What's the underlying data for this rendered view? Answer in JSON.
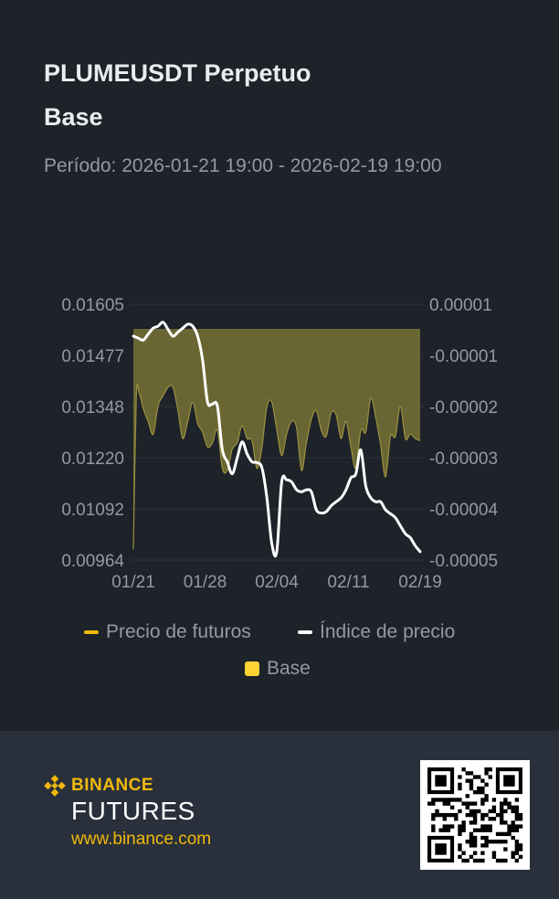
{
  "header": {
    "title_line1": "PLUMEUSDT Perpetuo",
    "title_line2": "Base",
    "period": "Período: 2026-01-21 19:00 - 2026-02-19 19:00"
  },
  "legend": {
    "futures_label": "Precio de futuros",
    "index_label": "Índice de precio",
    "basis_label": "Base"
  },
  "footer": {
    "brand_name": "BINANCE",
    "brand_sub": "FUTURES",
    "website": "www.binance.com"
  },
  "colors": {
    "futures": "#f0b90b",
    "index": "#ffffff",
    "basis": "#fcd535",
    "basis_fill": "#6f6a34",
    "grid": "#2e333c",
    "tick": "#929aa5"
  },
  "chart_data": {
    "type": "area",
    "x_ticks": [
      "01/21",
      "01/28",
      "02/04",
      "02/11",
      "02/19"
    ],
    "y_left_ticks": [
      "0.01605",
      "0.01477",
      "0.01348",
      "0.01220",
      "0.01092",
      "0.00964"
    ],
    "y_right_ticks": [
      "0.00001",
      "-0.00001",
      "-0.00002",
      "-0.00003",
      "-0.00004",
      "-0.00005"
    ],
    "y_left_range": [
      0.00964,
      0.01605
    ],
    "y_right_range": [
      -5e-05,
      1e-05
    ],
    "x_range_days": [
      0,
      29
    ],
    "series": [
      {
        "name": "Índice de precio",
        "axis": "left",
        "points": [
          [
            0,
            0.01525
          ],
          [
            0.5,
            0.0152
          ],
          [
            1,
            0.01515
          ],
          [
            1.5,
            0.0153
          ],
          [
            2,
            0.01545
          ],
          [
            2.5,
            0.0155
          ],
          [
            3,
            0.0156
          ],
          [
            3.5,
            0.01542
          ],
          [
            4,
            0.01525
          ],
          [
            4.5,
            0.01535
          ],
          [
            5,
            0.01545
          ],
          [
            5.5,
            0.01555
          ],
          [
            6,
            0.0155
          ],
          [
            6.5,
            0.01525
          ],
          [
            7,
            0.01465
          ],
          [
            7.5,
            0.0136
          ],
          [
            8,
            0.01355
          ],
          [
            8.5,
            0.0135
          ],
          [
            9,
            0.0124
          ],
          [
            9.5,
            0.0121
          ],
          [
            10,
            0.0118
          ],
          [
            10.5,
            0.0122
          ],
          [
            11,
            0.0126
          ],
          [
            11.5,
            0.0123
          ],
          [
            12,
            0.0121
          ],
          [
            12.5,
            0.01208
          ],
          [
            13,
            0.01195
          ],
          [
            13.5,
            0.0112
          ],
          [
            14,
            0.01005
          ],
          [
            14.5,
            0.00985
          ],
          [
            15,
            0.0116
          ],
          [
            15.5,
            0.01165
          ],
          [
            16,
            0.0116
          ],
          [
            16.5,
            0.0114
          ],
          [
            17,
            0.01135
          ],
          [
            17.5,
            0.0114
          ],
          [
            18,
            0.01135
          ],
          [
            18.5,
            0.0109
          ],
          [
            19,
            0.01082
          ],
          [
            19.5,
            0.01085
          ],
          [
            20,
            0.011
          ],
          [
            20.5,
            0.0111
          ],
          [
            21,
            0.0112
          ],
          [
            21.5,
            0.0114
          ],
          [
            22,
            0.0117
          ],
          [
            22.5,
            0.0118
          ],
          [
            23,
            0.0124
          ],
          [
            23.5,
            0.0115
          ],
          [
            24,
            0.0112
          ],
          [
            24.5,
            0.0111
          ],
          [
            25,
            0.0111
          ],
          [
            25.5,
            0.0109
          ],
          [
            26,
            0.0108
          ],
          [
            26.5,
            0.0107
          ],
          [
            27,
            0.0105
          ],
          [
            27.5,
            0.0103
          ],
          [
            28,
            0.0102
          ],
          [
            28.5,
            0.01
          ],
          [
            29,
            0.00985
          ]
        ]
      },
      {
        "name": "Base",
        "axis": "right",
        "points": [
          [
            0,
            -4.75e-05
          ],
          [
            0.3,
            -1.18e-05
          ],
          [
            0.6,
            -1.1e-05
          ],
          [
            1,
            -1.45e-05
          ],
          [
            1.5,
            -1.75e-05
          ],
          [
            2,
            -2.05e-05
          ],
          [
            2.5,
            -1.38e-05
          ],
          [
            3,
            -1.15e-05
          ],
          [
            3.5,
            -9.5e-06
          ],
          [
            4,
            -9.5e-06
          ],
          [
            4.5,
            -1.48e-05
          ],
          [
            5,
            -2.15e-05
          ],
          [
            5.5,
            -1.75e-05
          ],
          [
            6,
            -1.3e-05
          ],
          [
            6.5,
            -1.8e-05
          ],
          [
            7,
            -2e-05
          ],
          [
            7.5,
            -2.35e-05
          ],
          [
            8,
            -2.25e-05
          ],
          [
            8.5,
            -1.95e-05
          ],
          [
            9,
            -2.85e-05
          ],
          [
            9.5,
            -2.9e-05
          ],
          [
            10,
            -2.4e-05
          ],
          [
            10.5,
            -2.25e-05
          ],
          [
            11,
            -1.85e-05
          ],
          [
            11.5,
            -2.15e-05
          ],
          [
            12,
            -2.2e-05
          ],
          [
            12.5,
            -2.85e-05
          ],
          [
            13,
            -2.35e-05
          ],
          [
            13.5,
            -1.4e-05
          ],
          [
            14,
            -1.3e-05
          ],
          [
            14.5,
            -1.95e-05
          ],
          [
            15,
            -2.55e-05
          ],
          [
            15.5,
            -2.05e-05
          ],
          [
            16,
            -1.75e-05
          ],
          [
            16.5,
            -1.9e-05
          ],
          [
            17,
            -2.9e-05
          ],
          [
            17.5,
            -2.25e-05
          ],
          [
            18,
            -1.7e-05
          ],
          [
            18.5,
            -1.5e-05
          ],
          [
            19,
            -1.95e-05
          ],
          [
            19.5,
            -2.1e-05
          ],
          [
            20,
            -1.55e-05
          ],
          [
            20.5,
            -1.6e-05
          ],
          [
            21,
            -2.15e-05
          ],
          [
            21.5,
            -1.75e-05
          ],
          [
            22,
            -2.35e-05
          ],
          [
            22.5,
            -2.85e-05
          ],
          [
            23,
            -1.95e-05
          ],
          [
            23.5,
            -2e-05
          ],
          [
            24,
            -1.2e-05
          ],
          [
            24.5,
            -1.65e-05
          ],
          [
            25,
            -2.3e-05
          ],
          [
            25.5,
            -3.05e-05
          ],
          [
            26,
            -2.1e-05
          ],
          [
            26.5,
            -2.1e-05
          ],
          [
            27,
            -1.4e-05
          ],
          [
            27.5,
            -2.15e-05
          ],
          [
            28,
            -2.05e-05
          ],
          [
            28.5,
            -2.15e-05
          ],
          [
            29,
            -2.2e-05
          ]
        ]
      }
    ]
  }
}
